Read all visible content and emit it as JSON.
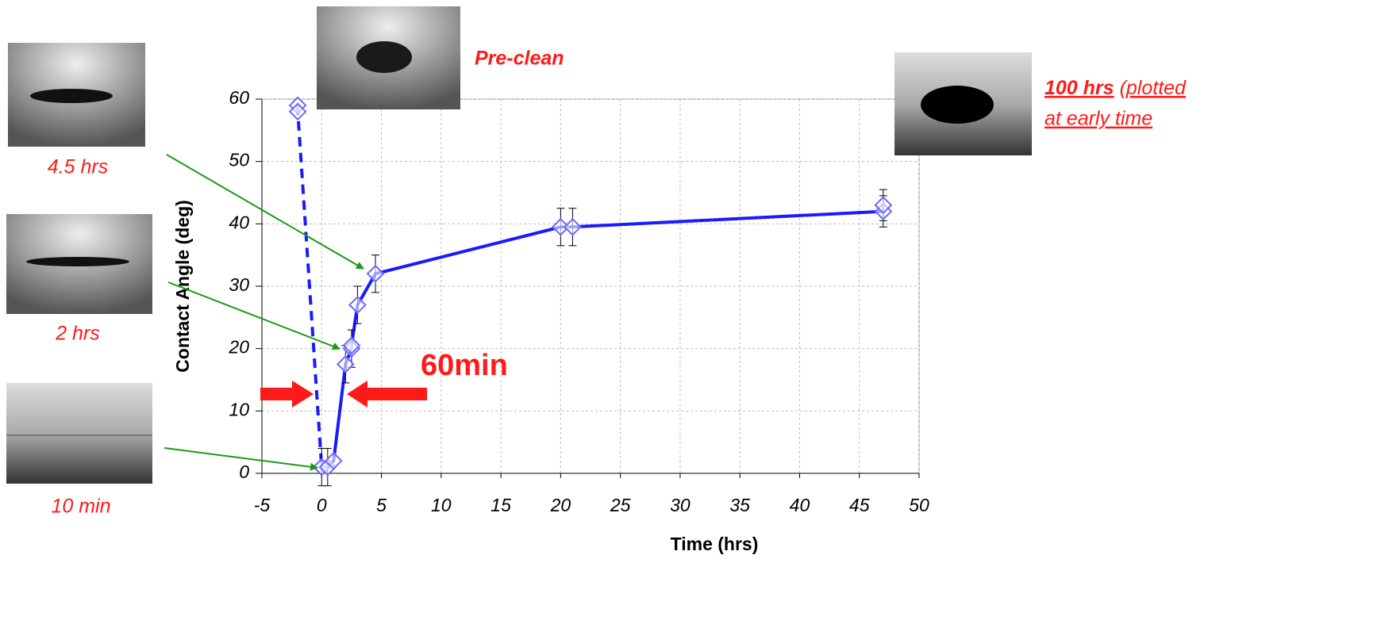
{
  "chart_data": {
    "type": "line",
    "y_label": "Contact Angle (deg)",
    "x_label": "Time (hrs)",
    "xlim": [
      -5,
      50
    ],
    "ylim": [
      0,
      60
    ],
    "xticks": [
      -5,
      0,
      5,
      10,
      15,
      20,
      25,
      30,
      35,
      40,
      45,
      50
    ],
    "yticks": [
      0,
      10,
      20,
      30,
      40,
      50,
      60
    ],
    "grid": true,
    "series": [
      {
        "color": "#1a1aff",
        "style": "dashed",
        "x": [
          -2,
          -2,
          0
        ],
        "values": [
          59,
          58,
          1
        ]
      },
      {
        "color": "#1a1aff",
        "style": "solid",
        "x": [
          0,
          0.5,
          1,
          2,
          2.5,
          2.5,
          3,
          4.5,
          20,
          21,
          47,
          47
        ],
        "values": [
          1,
          1,
          2,
          17.5,
          20,
          20.5,
          27,
          32,
          39.5,
          39.5,
          42,
          43
        ],
        "errors": [
          3,
          3,
          null,
          3,
          3,
          null,
          3,
          3,
          3,
          3,
          2.5,
          2.5
        ]
      }
    ]
  },
  "annotations": {
    "pre_clean": "Pre-clean",
    "hrs_100": "100 hrs",
    "plotted": "(plotted",
    "early": "at early time",
    "t45": "4.5 hrs",
    "t2": "2 hrs",
    "t10": "10 min",
    "window": "60min"
  }
}
